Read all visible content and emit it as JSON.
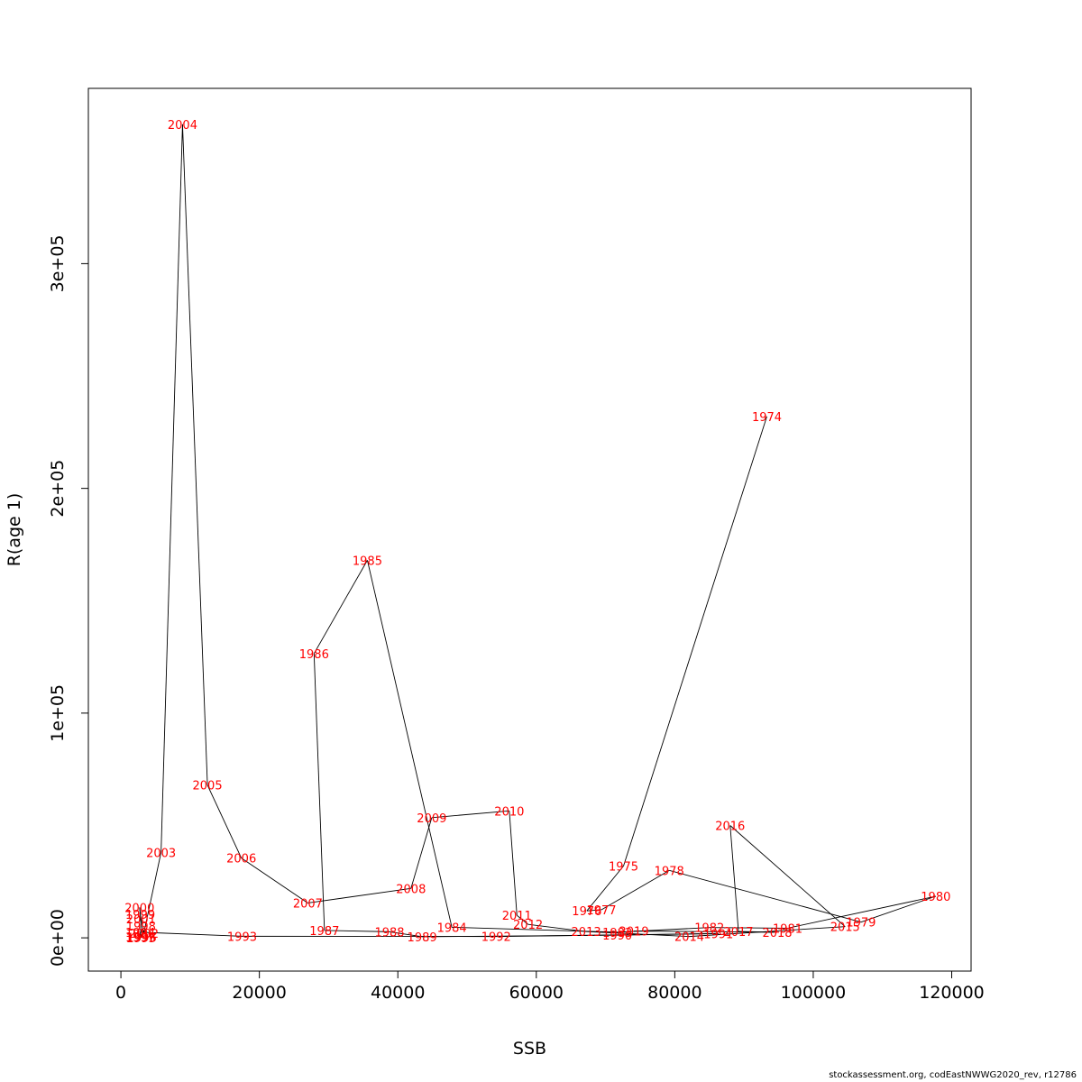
{
  "chart_data": {
    "type": "line",
    "xlabel": "SSB",
    "ylabel": "R(age 1)",
    "xlim": [
      -4700,
      122800
    ],
    "ylim": [
      -14800,
      378000
    ],
    "x_ticks": [
      0,
      20000,
      40000,
      60000,
      80000,
      100000,
      120000
    ],
    "x_tick_labels": [
      "0",
      "20000",
      "40000",
      "60000",
      "80000",
      "100000",
      "120000"
    ],
    "y_ticks": [
      0,
      100000,
      200000,
      300000
    ],
    "y_tick_labels": [
      "0e+00",
      "1e+05",
      "2e+05",
      "3e+05"
    ],
    "grid": false,
    "series": [
      {
        "points": [
          {
            "year": "1974",
            "x": 93300,
            "y": 232000
          },
          {
            "year": "1975",
            "x": 72600,
            "y": 32000
          },
          {
            "year": "1976",
            "x": 67300,
            "y": 12000
          },
          {
            "year": "1977",
            "x": 69400,
            "y": 12500
          },
          {
            "year": "1978",
            "x": 79200,
            "y": 30000
          },
          {
            "year": "1979",
            "x": 106900,
            "y": 7000
          },
          {
            "year": "1980",
            "x": 117700,
            "y": 18500
          },
          {
            "year": "1981",
            "x": 96300,
            "y": 4300
          },
          {
            "year": "1982",
            "x": 85000,
            "y": 4600
          },
          {
            "year": "1983",
            "x": 71700,
            "y": 2500
          },
          {
            "year": "1984",
            "x": 47800,
            "y": 4700
          },
          {
            "year": "1985",
            "x": 35600,
            "y": 168000
          },
          {
            "year": "1986",
            "x": 27900,
            "y": 126500
          },
          {
            "year": "1987",
            "x": 29400,
            "y": 3300
          },
          {
            "year": "1988",
            "x": 38800,
            "y": 2700
          },
          {
            "year": "1989",
            "x": 43500,
            "y": 500
          },
          {
            "year": "1990",
            "x": 71700,
            "y": 1200
          },
          {
            "year": "1991",
            "x": 86300,
            "y": 1900
          },
          {
            "year": "1992",
            "x": 54200,
            "y": 600
          },
          {
            "year": "1993",
            "x": 17500,
            "y": 700
          },
          {
            "year": "1994",
            "x": 2800,
            "y": 2500
          },
          {
            "year": "1995",
            "x": 2900,
            "y": 100
          },
          {
            "year": "1996",
            "x": 3000,
            "y": 300
          },
          {
            "year": "1997",
            "x": 2800,
            "y": 500
          },
          {
            "year": "1998",
            "x": 2900,
            "y": 5300
          },
          {
            "year": "1999",
            "x": 2800,
            "y": 10500
          },
          {
            "year": "2000",
            "x": 2700,
            "y": 13500
          },
          {
            "year": "2001",
            "x": 2900,
            "y": 8500
          },
          {
            "year": "2002",
            "x": 3300,
            "y": 2000
          },
          {
            "year": "2003",
            "x": 5800,
            "y": 38000
          },
          {
            "year": "2004",
            "x": 8900,
            "y": 362000
          },
          {
            "year": "2005",
            "x": 12500,
            "y": 68000
          },
          {
            "year": "2006",
            "x": 17400,
            "y": 35500
          },
          {
            "year": "2007",
            "x": 27000,
            "y": 15500
          },
          {
            "year": "2008",
            "x": 41900,
            "y": 22000
          },
          {
            "year": "2009",
            "x": 44900,
            "y": 53500
          },
          {
            "year": "2010",
            "x": 56100,
            "y": 56500
          },
          {
            "year": "2011",
            "x": 57200,
            "y": 10000
          },
          {
            "year": "2012",
            "x": 58800,
            "y": 6000
          },
          {
            "year": "2013",
            "x": 67200,
            "y": 2800
          },
          {
            "year": "2014",
            "x": 82100,
            "y": 600
          },
          {
            "year": "2015",
            "x": 104600,
            "y": 5000
          },
          {
            "year": "2016",
            "x": 88000,
            "y": 50000
          },
          {
            "year": "2017",
            "x": 89200,
            "y": 2800
          },
          {
            "year": "2018",
            "x": 94800,
            "y": 2500
          },
          {
            "year": "2019",
            "x": 74100,
            "y": 3000
          }
        ]
      }
    ]
  },
  "footer": {
    "credit": "stockassessment.org, codEastNWWG2020_rev, r12786"
  }
}
